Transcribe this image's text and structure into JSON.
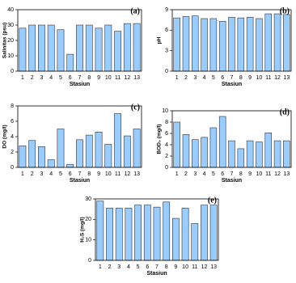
{
  "chart_data": [
    {
      "type": "bar",
      "label": "(a)",
      "x_label": "Stasiun",
      "y_label": "Salinitas (psu)",
      "categories": [
        "1",
        "2",
        "3",
        "4",
        "5",
        "6",
        "7",
        "8",
        "9",
        "10",
        "11",
        "12",
        "13"
      ],
      "values": [
        28,
        30,
        30,
        30,
        27,
        11,
        30,
        30,
        28,
        30,
        26,
        31,
        31
      ],
      "color": "#99ccff",
      "ylim": [
        0,
        40
      ],
      "yticks": [
        0,
        10,
        20,
        30,
        40
      ]
    },
    {
      "type": "bar",
      "label": "(b)",
      "x_label": "Stasiun",
      "y_label": "pH",
      "categories": [
        "1",
        "2",
        "3",
        "4",
        "5",
        "6",
        "7",
        "8",
        "9",
        "10",
        "11",
        "12",
        "13"
      ],
      "values": [
        7.8,
        8.0,
        8.1,
        7.7,
        7.7,
        7.3,
        7.9,
        7.8,
        7.9,
        7.7,
        8.4,
        8.4,
        8.3
      ],
      "color": "#99ccff",
      "ylim": [
        0,
        9
      ],
      "yticks": [
        0,
        3,
        6,
        9
      ]
    },
    {
      "type": "bar",
      "label": "(c)",
      "x_label": "Stasiun",
      "y_label": "DO (mg/l)",
      "categories": [
        "1",
        "2",
        "3",
        "4",
        "5",
        "6",
        "7",
        "8",
        "9",
        "10",
        "11",
        "12",
        "13"
      ],
      "values": [
        2.8,
        3.5,
        2.7,
        1.0,
        5.0,
        0.4,
        3.6,
        4.2,
        4.6,
        3.0,
        7.0,
        4.1,
        5.0
      ],
      "color": "#99ccff",
      "ylim": [
        0,
        8
      ],
      "yticks": [
        0,
        2,
        4,
        6,
        8
      ]
    },
    {
      "type": "bar",
      "label": "(d)",
      "x_label": "Stasiun",
      "y_label": "BOD₅ (mg/l)",
      "categories": [
        "1",
        "2",
        "3",
        "4",
        "5",
        "6",
        "7",
        "8",
        "9",
        "10",
        "11",
        "12",
        "13"
      ],
      "values": [
        8.0,
        5.8,
        4.9,
        5.3,
        7.0,
        9.0,
        4.7,
        3.3,
        4.7,
        4.5,
        6.1,
        4.7,
        4.7
      ],
      "color": "#99ccff",
      "ylim": [
        0,
        10
      ],
      "yticks": [
        0,
        2,
        4,
        6,
        8,
        10
      ]
    },
    {
      "type": "bar",
      "label": "(e)",
      "x_label": "Stasiun",
      "y_label": "H₂S (mg/l)",
      "categories": [
        "1",
        "2",
        "3",
        "4",
        "5",
        "6",
        "7",
        "8",
        "9",
        "10",
        "11",
        "12",
        "13"
      ],
      "values": [
        29,
        25.5,
        25.5,
        25.5,
        27,
        27,
        26,
        28.5,
        20.5,
        25.5,
        18,
        27,
        27
      ],
      "color": "#99ccff",
      "ylim": [
        0,
        30
      ],
      "yticks": [
        0,
        10,
        20,
        30
      ]
    }
  ]
}
